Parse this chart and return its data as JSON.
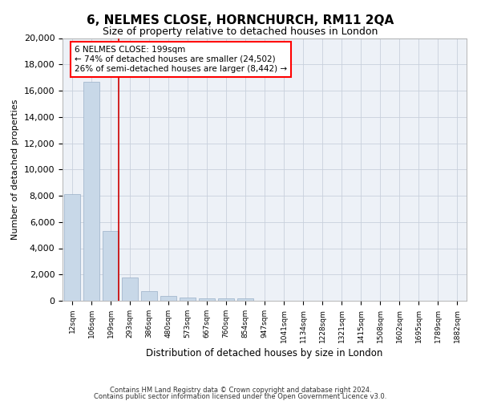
{
  "title": "6, NELMES CLOSE, HORNCHURCH, RM11 2QA",
  "subtitle": "Size of property relative to detached houses in London",
  "xlabel": "Distribution of detached houses by size in London",
  "ylabel": "Number of detached properties",
  "footnote1": "Contains HM Land Registry data © Crown copyright and database right 2024.",
  "footnote2": "Contains public sector information licensed under the Open Government Licence v3.0.",
  "annotation_line1": "6 NELMES CLOSE: 199sqm",
  "annotation_line2": "← 74% of detached houses are smaller (24,502)",
  "annotation_line3": "26% of semi-detached houses are larger (8,442) →",
  "property_bin_index": 2,
  "bar_color": "#c8d8e8",
  "bar_edgecolor": "#9ab0c8",
  "highlight_line_color": "#cc0000",
  "grid_color": "#c8d0dc",
  "background_color": "#edf1f7",
  "bins": [
    "12sqm",
    "106sqm",
    "199sqm",
    "293sqm",
    "386sqm",
    "480sqm",
    "573sqm",
    "667sqm",
    "760sqm",
    "854sqm",
    "947sqm",
    "1041sqm",
    "1134sqm",
    "1228sqm",
    "1321sqm",
    "1415sqm",
    "1508sqm",
    "1602sqm",
    "1695sqm",
    "1789sqm",
    "1882sqm"
  ],
  "values": [
    8100,
    16650,
    5300,
    1750,
    720,
    350,
    270,
    200,
    185,
    195,
    0,
    0,
    0,
    0,
    0,
    0,
    0,
    0,
    0,
    0,
    0
  ],
  "ylim": [
    0,
    20000
  ],
  "yticks": [
    0,
    2000,
    4000,
    6000,
    8000,
    10000,
    12000,
    14000,
    16000,
    18000,
    20000
  ]
}
